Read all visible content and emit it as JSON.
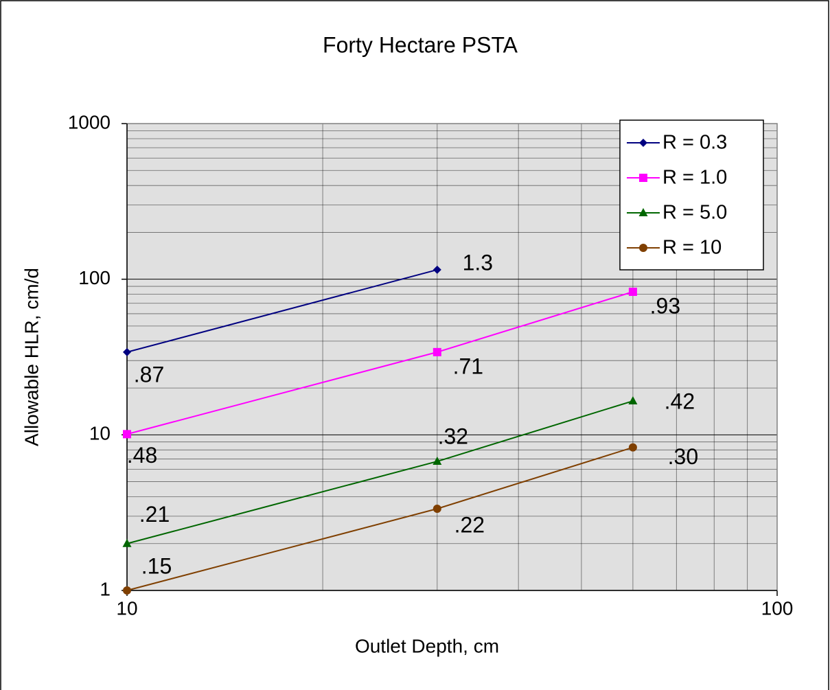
{
  "chart_data": {
    "type": "line",
    "title": "Forty Hectare PSTA",
    "xlabel": "Outlet Depth, cm",
    "ylabel": "Allowable HLR, cm/d",
    "x": [
      10,
      30,
      60
    ],
    "xscale": "log",
    "yscale": "log",
    "xlim": [
      10,
      100
    ],
    "ylim": [
      1,
      1000
    ],
    "xticks": [
      10,
      100
    ],
    "yticks": [
      1,
      10,
      100,
      1000
    ],
    "grid": true,
    "minor_grid": true,
    "legend": "upper right",
    "series": [
      {
        "name": "R = 0.3",
        "color": "#000080",
        "marker": "diamond",
        "values": [
          34,
          115,
          null
        ],
        "labels": [
          ".87",
          "1.3",
          null
        ]
      },
      {
        "name": "R = 1.0",
        "color": "#ff00ff",
        "marker": "square",
        "values": [
          10.1,
          34,
          83
        ],
        "labels": [
          ".48",
          ".71",
          ".93"
        ]
      },
      {
        "name": "R = 5.0",
        "color": "#006600",
        "marker": "triangle",
        "values": [
          2.0,
          6.75,
          16.5
        ],
        "labels": [
          ".21",
          ".32",
          ".42"
        ]
      },
      {
        "name": "R = 10",
        "color": "#7f3f00",
        "marker": "circle",
        "values": [
          1,
          3.35,
          8.3
        ],
        "labels": [
          ".15",
          ".22",
          ".30"
        ]
      }
    ]
  }
}
